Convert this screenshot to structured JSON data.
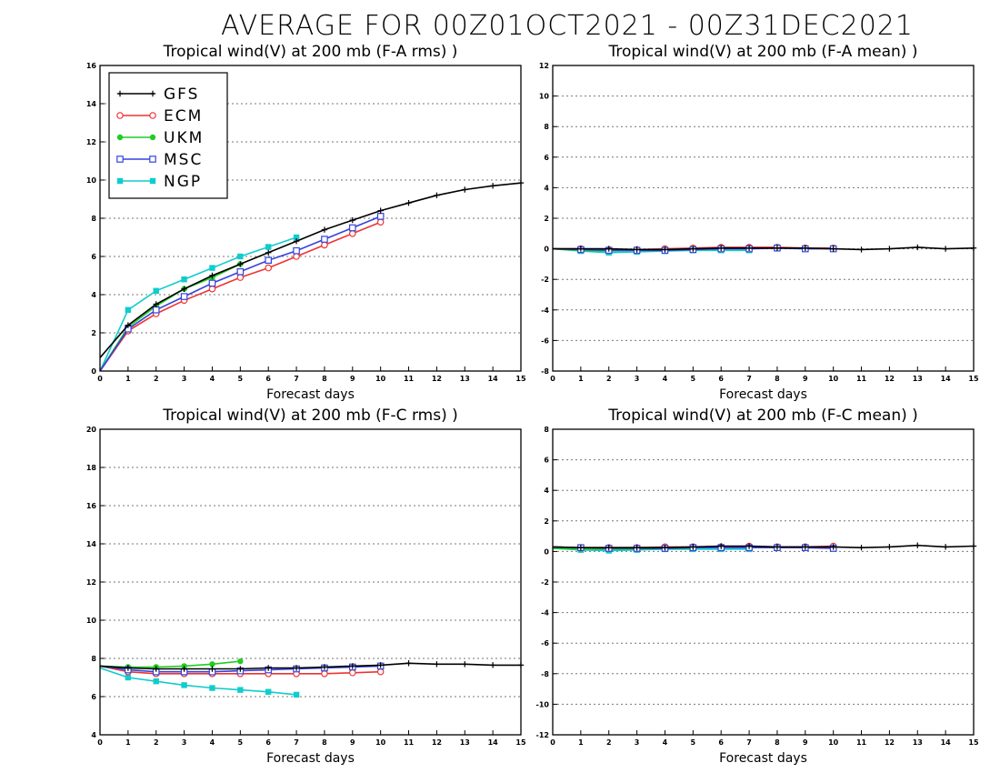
{
  "figure": {
    "title": "AVERAGE FOR 00Z01OCT2021 - 00Z31DEC2021"
  },
  "legend": {
    "entries": [
      {
        "name": "GFS",
        "color": "#000000",
        "marker": "plus"
      },
      {
        "name": "ECM",
        "color": "#ee3333",
        "marker": "open-circle"
      },
      {
        "name": "UKM",
        "color": "#22cc22",
        "marker": "filled-circle"
      },
      {
        "name": "MSC",
        "color": "#3344dd",
        "marker": "open-square"
      },
      {
        "name": "NGP",
        "color": "#11cccc",
        "marker": "filled-square"
      }
    ]
  },
  "chart_data": [
    {
      "type": "line",
      "title": "Tropical wind(V) at 200 mb (F-A rms) )",
      "xlabel": "Forecast days",
      "ylabel": "",
      "xlim": [
        0,
        15
      ],
      "ylim": [
        0,
        16
      ],
      "yticks": [
        0,
        2,
        4,
        6,
        8,
        10,
        12,
        14,
        16
      ],
      "xticks": [
        0,
        1,
        2,
        3,
        4,
        5,
        6,
        7,
        8,
        9,
        10,
        11,
        12,
        13,
        14,
        15
      ],
      "grid": "horizontal-dotted",
      "legend": "top-left",
      "series": [
        {
          "name": "GFS",
          "x": [
            0,
            1,
            2,
            3,
            4,
            5,
            6,
            7,
            8,
            9,
            10,
            11,
            12,
            13,
            14,
            15
          ],
          "values": [
            0.7,
            2.4,
            3.5,
            4.3,
            5.0,
            5.6,
            6.2,
            6.8,
            7.4,
            7.9,
            8.4,
            8.8,
            9.2,
            9.5,
            9.7,
            9.85
          ]
        },
        {
          "name": "ECM",
          "x": [
            0,
            1,
            2,
            3,
            4,
            5,
            6,
            7,
            8,
            9,
            10
          ],
          "values": [
            0,
            2.1,
            3.0,
            3.7,
            4.3,
            4.9,
            5.4,
            6.0,
            6.6,
            7.2,
            7.8
          ]
        },
        {
          "name": "UKM",
          "x": [
            0,
            1,
            2,
            3,
            4,
            5
          ],
          "values": [
            0,
            2.3,
            3.4,
            4.3,
            4.9,
            5.6
          ]
        },
        {
          "name": "MSC",
          "x": [
            0,
            1,
            2,
            3,
            4,
            5,
            6,
            7,
            8,
            9,
            10
          ],
          "values": [
            0,
            2.2,
            3.2,
            3.9,
            4.6,
            5.2,
            5.8,
            6.3,
            6.9,
            7.5,
            8.1
          ]
        },
        {
          "name": "NGP",
          "x": [
            0,
            1,
            2,
            3,
            4,
            5,
            6,
            7
          ],
          "values": [
            0,
            3.2,
            4.2,
            4.8,
            5.4,
            6.0,
            6.5,
            7.0
          ]
        }
      ]
    },
    {
      "type": "line",
      "title": "Tropical wind(V) at 200 mb (F-A mean) )",
      "xlabel": "Forecast days",
      "ylabel": "",
      "xlim": [
        0,
        15
      ],
      "ylim": [
        -8,
        12
      ],
      "yticks": [
        -8,
        -6,
        -4,
        -2,
        0,
        2,
        4,
        6,
        8,
        10,
        12
      ],
      "xticks": [
        0,
        1,
        2,
        3,
        4,
        5,
        6,
        7,
        8,
        9,
        10,
        11,
        12,
        13,
        14,
        15
      ],
      "grid": "horizontal-dotted",
      "series": [
        {
          "name": "GFS",
          "x": [
            0,
            1,
            2,
            3,
            4,
            5,
            6,
            7,
            8,
            9,
            10,
            11,
            12,
            13,
            14,
            15
          ],
          "values": [
            0.0,
            0.0,
            0.0,
            -0.05,
            -0.05,
            0.0,
            0.05,
            0.05,
            0.05,
            0.05,
            0.0,
            -0.05,
            0.0,
            0.1,
            0.0,
            0.05
          ]
        },
        {
          "name": "ECM",
          "x": [
            0,
            1,
            2,
            3,
            4,
            5,
            6,
            7,
            8,
            9,
            10
          ],
          "values": [
            0.0,
            0.0,
            -0.05,
            -0.05,
            0.0,
            0.05,
            0.1,
            0.1,
            0.1,
            0.05,
            0.05
          ]
        },
        {
          "name": "UKM",
          "x": [
            0,
            1,
            2,
            3,
            4,
            5
          ],
          "values": [
            0.0,
            -0.1,
            -0.15,
            -0.1,
            -0.1,
            -0.05
          ]
        },
        {
          "name": "MSC",
          "x": [
            0,
            1,
            2,
            3,
            4,
            5,
            6,
            7,
            8,
            9,
            10
          ],
          "values": [
            0.0,
            -0.05,
            -0.1,
            -0.1,
            -0.1,
            -0.05,
            0.0,
            0.0,
            0.05,
            0.0,
            0.0
          ]
        },
        {
          "name": "NGP",
          "x": [
            0,
            1,
            2,
            3,
            4,
            5,
            6,
            7
          ],
          "values": [
            0.0,
            -0.15,
            -0.25,
            -0.2,
            -0.15,
            -0.1,
            -0.1,
            -0.1
          ]
        }
      ]
    },
    {
      "type": "line",
      "title": "Tropical wind(V) at 200 mb (F-C rms) )",
      "xlabel": "Forecast days",
      "ylabel": "",
      "xlim": [
        0,
        15
      ],
      "ylim": [
        4,
        20
      ],
      "yticks": [
        4,
        6,
        8,
        10,
        12,
        14,
        16,
        18,
        20
      ],
      "xticks": [
        0,
        1,
        2,
        3,
        4,
        5,
        6,
        7,
        8,
        9,
        10,
        11,
        12,
        13,
        14,
        15
      ],
      "grid": "horizontal-dotted",
      "series": [
        {
          "name": "GFS",
          "x": [
            0,
            1,
            2,
            3,
            4,
            5,
            6,
            7,
            8,
            9,
            10,
            11,
            12,
            13,
            14,
            15
          ],
          "values": [
            7.6,
            7.5,
            7.45,
            7.45,
            7.45,
            7.45,
            7.5,
            7.5,
            7.55,
            7.6,
            7.65,
            7.75,
            7.7,
            7.7,
            7.65,
            7.65
          ]
        },
        {
          "name": "ECM",
          "x": [
            0,
            1,
            2,
            3,
            4,
            5,
            6,
            7,
            8,
            9,
            10
          ],
          "values": [
            7.6,
            7.3,
            7.2,
            7.2,
            7.2,
            7.2,
            7.2,
            7.2,
            7.2,
            7.25,
            7.3
          ]
        },
        {
          "name": "UKM",
          "x": [
            0,
            1,
            2,
            3,
            4,
            5
          ],
          "values": [
            7.6,
            7.55,
            7.55,
            7.6,
            7.7,
            7.85
          ]
        },
        {
          "name": "MSC",
          "x": [
            0,
            1,
            2,
            3,
            4,
            5,
            6,
            7,
            8,
            9,
            10
          ],
          "values": [
            7.6,
            7.4,
            7.3,
            7.3,
            7.3,
            7.35,
            7.4,
            7.45,
            7.5,
            7.55,
            7.6
          ]
        },
        {
          "name": "NGP",
          "x": [
            0,
            1,
            2,
            3,
            4,
            5,
            6,
            7
          ],
          "values": [
            7.5,
            7.0,
            6.8,
            6.6,
            6.45,
            6.35,
            6.25,
            6.1
          ]
        }
      ]
    },
    {
      "type": "line",
      "title": "Tropical wind(V) at 200 mb (F-C mean) )",
      "xlabel": "Forecast days",
      "ylabel": "",
      "xlim": [
        0,
        15
      ],
      "ylim": [
        -12,
        8
      ],
      "yticks": [
        -12,
        -10,
        -8,
        -6,
        -4,
        -2,
        0,
        2,
        4,
        6,
        8
      ],
      "xticks": [
        0,
        1,
        2,
        3,
        4,
        5,
        6,
        7,
        8,
        9,
        10,
        11,
        12,
        13,
        14,
        15
      ],
      "grid": "horizontal-dotted",
      "series": [
        {
          "name": "GFS",
          "x": [
            0,
            1,
            2,
            3,
            4,
            5,
            6,
            7,
            8,
            9,
            10,
            11,
            12,
            13,
            14,
            15
          ],
          "values": [
            0.3,
            0.25,
            0.25,
            0.25,
            0.25,
            0.3,
            0.35,
            0.35,
            0.3,
            0.3,
            0.3,
            0.25,
            0.3,
            0.4,
            0.3,
            0.35
          ]
        },
        {
          "name": "ECM",
          "x": [
            0,
            1,
            2,
            3,
            4,
            5,
            6,
            7,
            8,
            9,
            10
          ],
          "values": [
            0.3,
            0.25,
            0.25,
            0.25,
            0.3,
            0.3,
            0.3,
            0.35,
            0.3,
            0.3,
            0.35
          ]
        },
        {
          "name": "UKM",
          "x": [
            0,
            1,
            2,
            3,
            4,
            5
          ],
          "values": [
            0.2,
            0.15,
            0.15,
            0.15,
            0.2,
            0.2
          ]
        },
        {
          "name": "MSC",
          "x": [
            0,
            1,
            2,
            3,
            4,
            5,
            6,
            7,
            8,
            9,
            10
          ],
          "values": [
            0.3,
            0.25,
            0.2,
            0.2,
            0.2,
            0.25,
            0.25,
            0.25,
            0.25,
            0.25,
            0.2
          ]
        },
        {
          "name": "NGP",
          "x": [
            0,
            1,
            2,
            3,
            4,
            5,
            6,
            7
          ],
          "values": [
            0.2,
            0.1,
            0.05,
            0.1,
            0.15,
            0.15,
            0.15,
            0.15
          ]
        }
      ]
    }
  ]
}
